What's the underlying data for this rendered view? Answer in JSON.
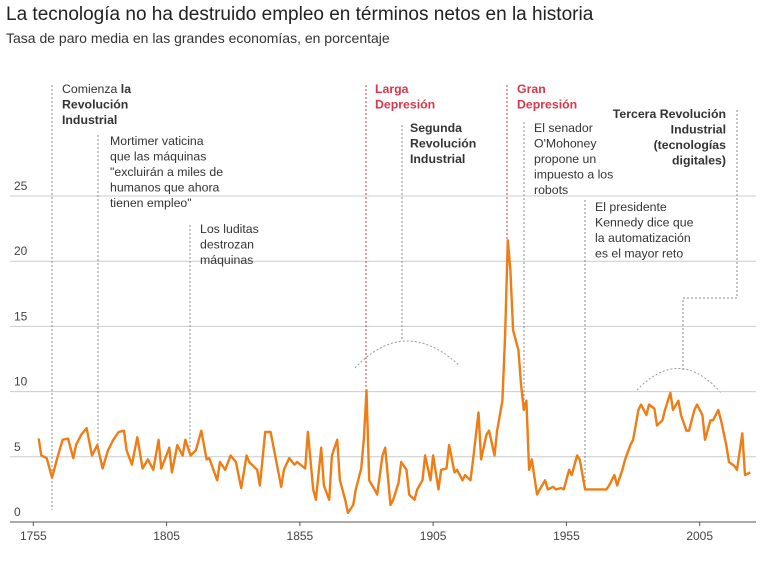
{
  "chart_data": {
    "type": "line",
    "title": "La tecnología no ha destruido empleo en términos netos en la historia",
    "subtitle": "Tasa de paro media en las grandes economías, en porcentaje",
    "color": "#ef7d16",
    "x": [
      1757,
      1758,
      1760,
      1762,
      1764,
      1766,
      1768,
      1770,
      1771,
      1773,
      1775,
      1777,
      1779,
      1781,
      1783,
      1785,
      1787,
      1789,
      1790,
      1792,
      1794,
      1796,
      1798,
      1800,
      1802,
      1803,
      1806,
      1807,
      1809,
      1811,
      1812,
      1814,
      1816,
      1818,
      1820,
      1821,
      1824,
      1825,
      1827,
      1829,
      1831,
      1833,
      1835,
      1836,
      1839,
      1840,
      1842,
      1844,
      1846,
      1848,
      1849,
      1851,
      1853,
      1854,
      1857,
      1858,
      1860,
      1861,
      1863,
      1864,
      1866,
      1867,
      1869,
      1870,
      1872,
      1873,
      1875,
      1876,
      1878,
      1879,
      1880,
      1881,
      1883,
      1884,
      1886,
      1887,
      1889,
      1890,
      1892,
      1893,
      1895,
      1896,
      1898,
      1899,
      1901,
      1902,
      1904,
      1905,
      1907,
      1908,
      1910,
      1911,
      1913,
      1914,
      1916,
      1917,
      1919,
      1920,
      1922,
      1923,
      1925,
      1926,
      1928,
      1929,
      1931,
      1932,
      1933,
      1934,
      1935,
      1937,
      1938,
      1939,
      1940,
      1941,
      1942,
      1944,
      1945,
      1947,
      1948,
      1950,
      1951,
      1953,
      1954,
      1956,
      1957,
      1959,
      1960,
      1962,
      1964,
      1966,
      1968,
      1970,
      1971,
      1973,
      1974,
      1976,
      1977,
      1979,
      1980,
      1982,
      1983,
      1985,
      1986,
      1988,
      1989,
      1991,
      1992,
      1994,
      1995,
      1997,
      1998,
      2000,
      2001,
      2003,
      2004,
      2006,
      2007,
      2009,
      2010,
      2012,
      2013,
      2015,
      2016,
      2018,
      2019,
      2021,
      2022,
      2024
    ],
    "values": [
      6.4,
      5.1,
      4.9,
      3.4,
      4.9,
      6.3,
      6.4,
      4.9,
      5.9,
      6.7,
      7.2,
      5.1,
      5.9,
      4.1,
      5.5,
      6.3,
      6.9,
      7.0,
      5.5,
      4.4,
      6.5,
      4.1,
      4.8,
      4.0,
      6.3,
      4.1,
      5.7,
      3.8,
      5.9,
      5.1,
      6.3,
      5.1,
      5.5,
      7.0,
      4.8,
      4.9,
      3.2,
      4.6,
      4.0,
      5.1,
      4.6,
      2.6,
      5.1,
      4.6,
      4.0,
      2.8,
      6.9,
      6.9,
      4.8,
      2.7,
      4.0,
      4.9,
      4.4,
      4.6,
      4.1,
      6.9,
      2.5,
      1.7,
      5.7,
      2.8,
      1.7,
      5.1,
      6.3,
      3.2,
      1.7,
      0.7,
      1.3,
      2.5,
      4.1,
      6.3,
      10.1,
      3.2,
      2.5,
      2.1,
      5.1,
      5.7,
      1.3,
      1.7,
      3.0,
      4.6,
      4.0,
      2.1,
      1.7,
      2.5,
      3.2,
      5.1,
      3.2,
      5.1,
      2.5,
      4.0,
      4.1,
      5.9,
      3.8,
      4.0,
      3.2,
      3.6,
      3.2,
      4.8,
      8.4,
      4.8,
      6.7,
      7.0,
      5.1,
      7.0,
      9.3,
      14.3,
      21.6,
      19.3,
      14.7,
      13.2,
      10.5,
      8.6,
      9.3,
      4.0,
      4.8,
      2.1,
      2.5,
      3.2,
      2.5,
      2.7,
      2.5,
      2.6,
      2.5,
      4.0,
      3.6,
      5.1,
      4.8,
      2.5,
      2.5,
      2.5,
      2.5,
      2.5,
      2.8,
      3.6,
      2.8,
      4.0,
      4.8,
      5.9,
      6.3,
      8.6,
      9.0,
      8.2,
      9.0,
      8.7,
      7.4,
      7.8,
      8.6,
      9.9,
      8.6,
      9.3,
      8.2,
      7.0,
      7.0,
      8.6,
      9.0,
      8.2,
      6.3,
      7.8,
      7.8,
      8.6,
      7.8,
      5.9,
      4.6,
      4.3,
      4.0,
      6.8,
      3.6,
      3.8
    ],
    "xlim": [
      1750,
      2025
    ],
    "xticks": [
      1755,
      1805,
      1855,
      1905,
      1955,
      2005
    ],
    "ylim": [
      0,
      25
    ],
    "yticks": [
      0,
      5,
      10,
      15,
      20,
      25
    ],
    "grid": true,
    "annotations": [
      {
        "color": "#333333",
        "lines": [
          [
            {
              "text": "Comienza "
            },
            {
              "text": "la",
              "bold": true
            }
          ],
          [
            {
              "text": "Revolución",
              "bold": true
            }
          ],
          [
            {
              "text": "Industrial",
              "bold": true
            }
          ]
        ]
      },
      {
        "color": "#333333",
        "lines": [
          [
            {
              "text": "Mortimer vaticina"
            }
          ],
          [
            {
              "text": "que las máquinas"
            }
          ],
          [
            {
              "text": "\"excluirán a miles de"
            }
          ],
          [
            {
              "text": "humanos que ahora"
            }
          ],
          [
            {
              "text": "tienen empleo\""
            }
          ]
        ]
      },
      {
        "color": "#333333",
        "lines": [
          [
            {
              "text": "Los luditas"
            }
          ],
          [
            {
              "text": "destrozan"
            }
          ],
          [
            {
              "text": "máquinas"
            }
          ]
        ]
      },
      {
        "color": "#d6374a",
        "lines": [
          [
            {
              "text": "Larga",
              "bold": true
            }
          ],
          [
            {
              "text": "Depresión",
              "bold": true
            }
          ]
        ]
      },
      {
        "color": "#333333",
        "lines": [
          [
            {
              "text": "Segunda",
              "bold": true
            }
          ],
          [
            {
              "text": "Revolución",
              "bold": true
            }
          ],
          [
            {
              "text": "Industrial",
              "bold": true
            }
          ]
        ]
      },
      {
        "color": "#d6374a",
        "lines": [
          [
            {
              "text": "Gran",
              "bold": true
            }
          ],
          [
            {
              "text": "Depresión",
              "bold": true
            }
          ]
        ]
      },
      {
        "color": "#333333",
        "lines": [
          [
            {
              "text": "El senador"
            }
          ],
          [
            {
              "text": "O'Mohoney"
            }
          ],
          [
            {
              "text": "propone un"
            }
          ],
          [
            {
              "text": "impuesto a los"
            }
          ],
          [
            {
              "text": "robots"
            }
          ]
        ]
      },
      {
        "color": "#333333",
        "lines": [
          [
            {
              "text": "El presidente"
            }
          ],
          [
            {
              "text": "Kennedy dice que"
            }
          ],
          [
            {
              "text": "la automatización"
            }
          ],
          [
            {
              "text": "es el mayor reto"
            }
          ]
        ]
      },
      {
        "color": "#333333",
        "lines": [
          [
            {
              "text": "Tercera Revolución",
              "bold": true
            }
          ],
          [
            {
              "text": "Industrial",
              "bold": true
            }
          ],
          [
            {
              "text": "(tecnologías",
              "bold": true
            }
          ],
          [
            {
              "text": "digitales)",
              "bold": true
            }
          ]
        ]
      }
    ]
  }
}
